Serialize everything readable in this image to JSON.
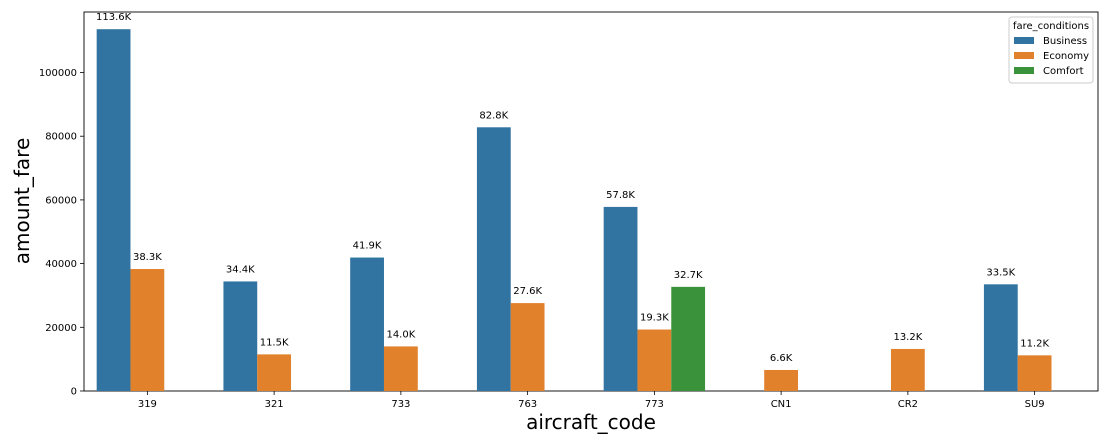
{
  "chart_data": {
    "type": "bar",
    "xlabel": "aircraft_code",
    "ylabel": "amount_fare",
    "ylim": [
      0,
      119000
    ],
    "yticks": [
      0,
      20000,
      40000,
      60000,
      80000,
      100000
    ],
    "ytick_labels": [
      "0",
      "20000",
      "40000",
      "60000",
      "80000",
      "100000"
    ],
    "grid": false,
    "legend": {
      "title": "fare_conditions",
      "placement": "top-right"
    },
    "categories": [
      "319",
      "321",
      "733",
      "763",
      "773",
      "CN1",
      "CR2",
      "SU9"
    ],
    "series": [
      {
        "name": "Business",
        "color": "#3274a1",
        "values": [
          113600,
          34400,
          41900,
          82800,
          57800,
          null,
          null,
          33500
        ],
        "labels": [
          "113.6K",
          "34.4K",
          "41.9K",
          "82.8K",
          "57.8K",
          null,
          null,
          "33.5K"
        ]
      },
      {
        "name": "Economy",
        "color": "#e1812c",
        "values": [
          38300,
          11500,
          14000,
          27600,
          19300,
          6600,
          13200,
          11200
        ],
        "labels": [
          "38.3K",
          "11.5K",
          "14.0K",
          "27.6K",
          "19.3K",
          "6.6K",
          "13.2K",
          "11.2K"
        ]
      },
      {
        "name": "Comfort",
        "color": "#3a923a",
        "values": [
          null,
          null,
          null,
          null,
          32700,
          null,
          null,
          null
        ],
        "labels": [
          null,
          null,
          null,
          null,
          "32.7K",
          null,
          null,
          null
        ]
      }
    ]
  }
}
